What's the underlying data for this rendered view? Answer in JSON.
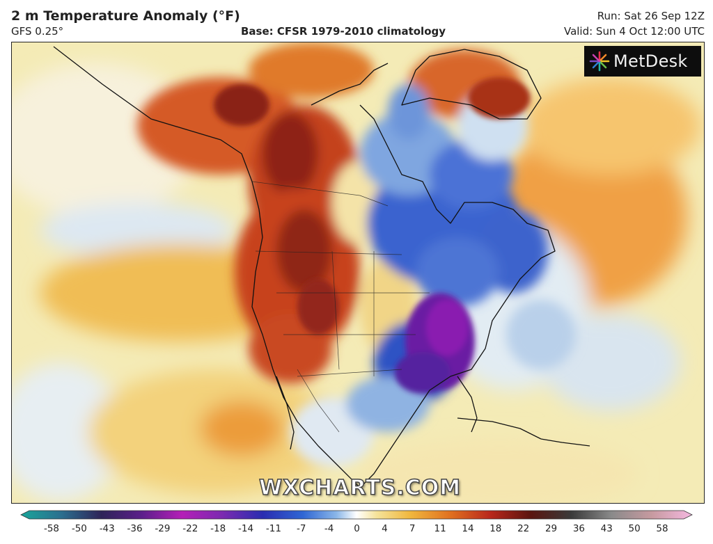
{
  "header": {
    "title": "2 m Temperature Anomaly (°F)",
    "model": "GFS 0.25°",
    "base": "Base: CFSR 1979-2010 climatology",
    "run": "Run: Sat 26 Sep 12Z",
    "valid": "Valid: Sun 4 Oct 12:00 UTC"
  },
  "logo": {
    "text": "MetDesk",
    "icon": "metdesk-flower-icon"
  },
  "watermark": "WXCHARTS.COM",
  "legend": {
    "ticks": [
      "-58",
      "-50",
      "-43",
      "-36",
      "-29",
      "-22",
      "-18",
      "-14",
      "-11",
      "-7",
      "-4",
      "0",
      "4",
      "7",
      "11",
      "14",
      "18",
      "22",
      "29",
      "36",
      "43",
      "50",
      "58"
    ]
  },
  "map": {
    "region": "North America",
    "palette": {
      "deep_cold": "#7a1a9a",
      "cold": "#2d54c8",
      "cool": "#8fb6e6",
      "neutral": "#f3efd6",
      "mild": "#f1c766",
      "warm": "#e68a2b",
      "hot": "#c0391c",
      "very_hot": "#7e1d14"
    }
  }
}
